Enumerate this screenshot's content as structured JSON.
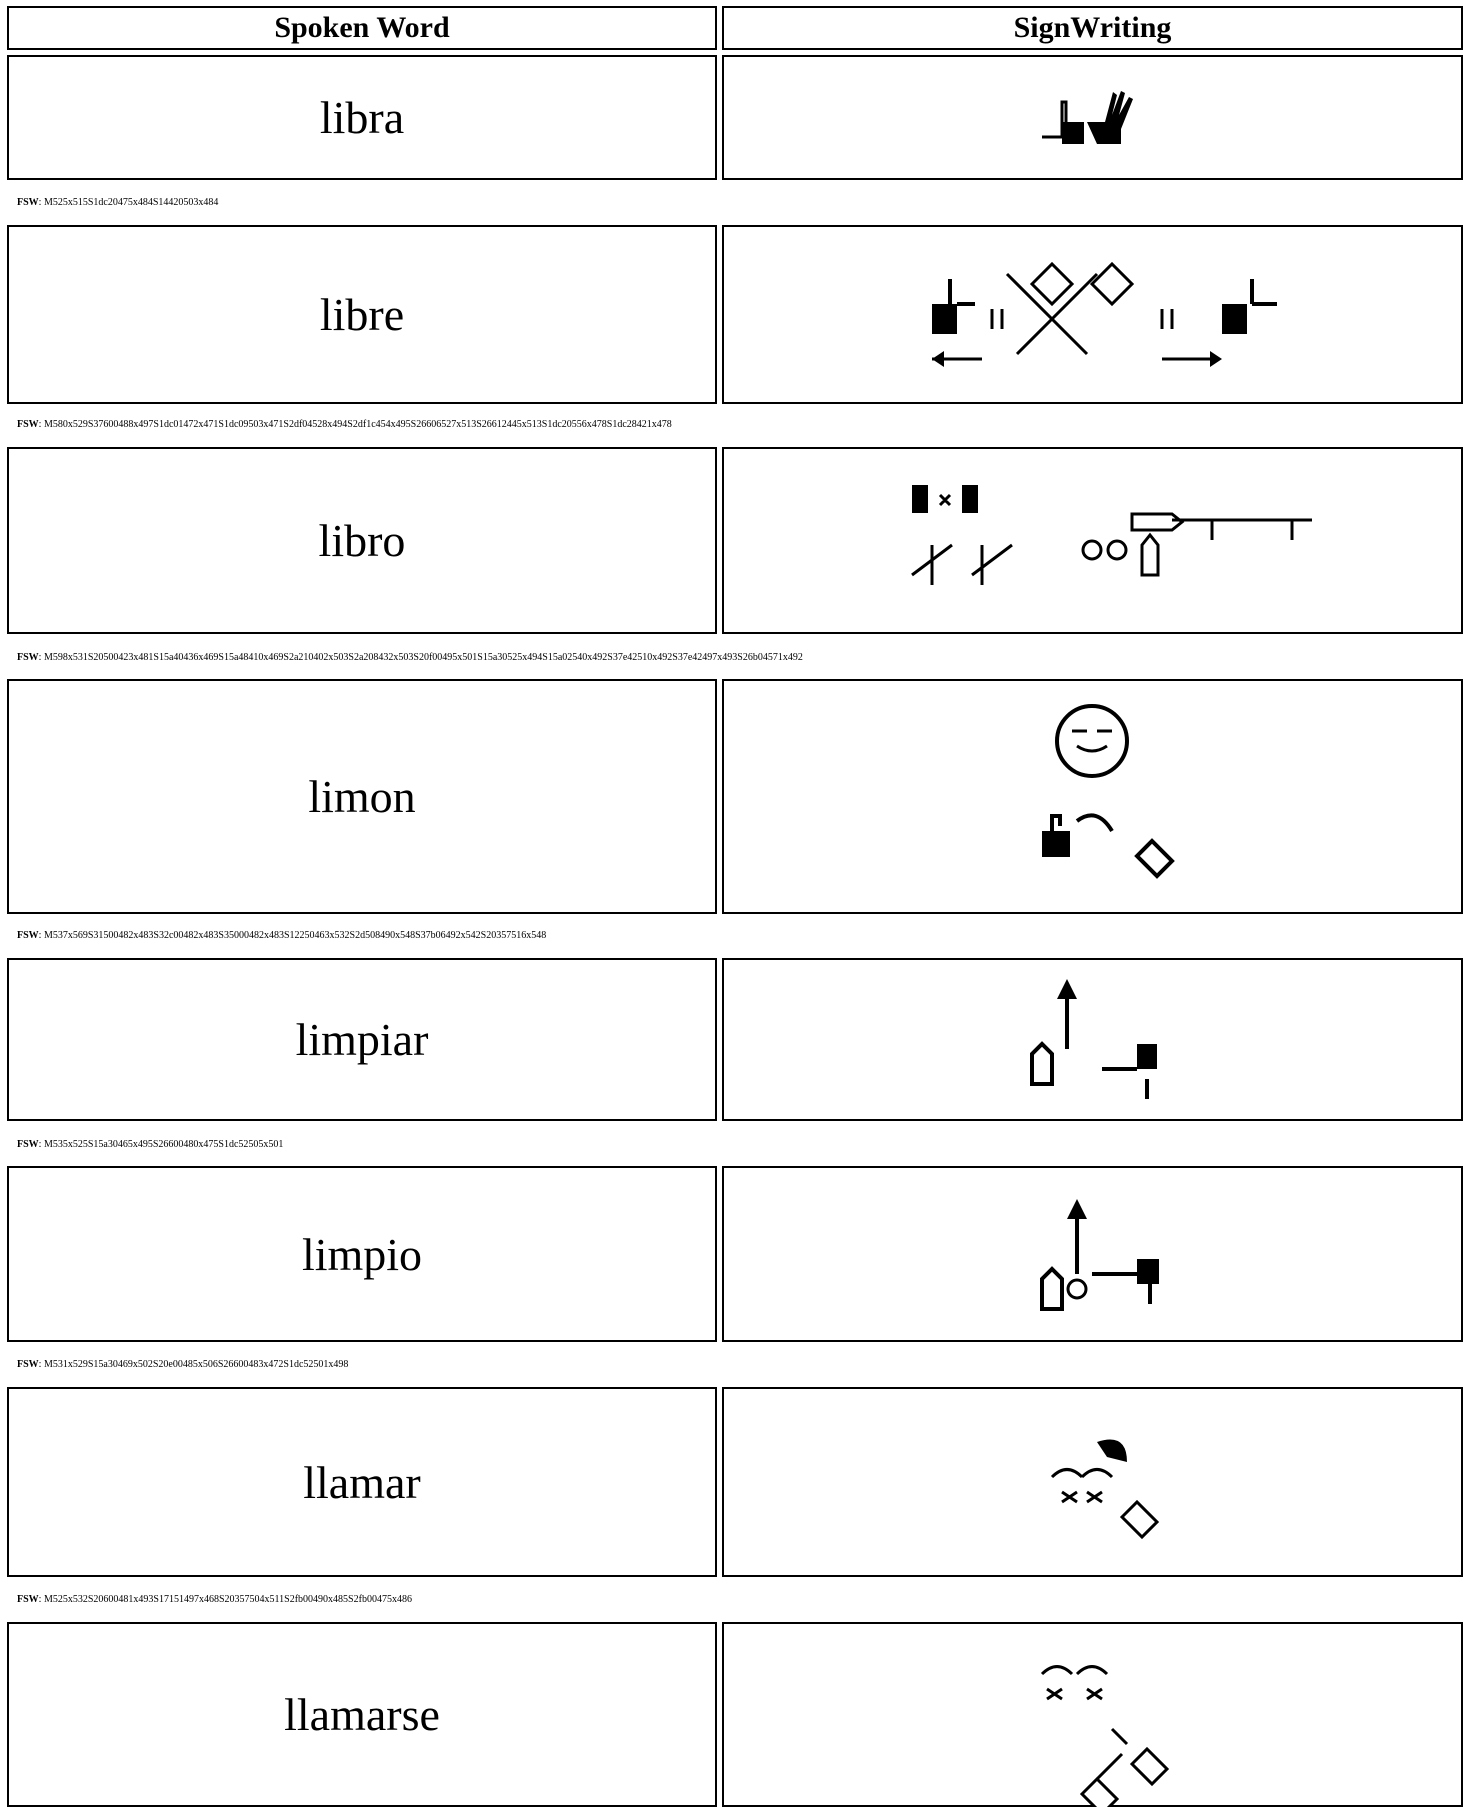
{
  "header": {
    "spoken_word": "Spoken Word",
    "signwriting": "SignWriting"
  },
  "fsw_label": "FSW",
  "fsw_separator": ":",
  "rows": [
    {
      "word": "libra",
      "fsw": "M525x515S1dc20475x484S14420503x484"
    },
    {
      "word": "libre",
      "fsw": "M580x529S37600488x497S1dc01472x471S1dc09503x471S2df04528x494S2df1c454x495S26606527x513S26612445x513S1dc20556x478S1dc28421x478"
    },
    {
      "word": "libro",
      "fsw": "M598x531S20500423x481S15a40436x469S15a48410x469S2a210402x503S2a208432x503S20f00495x501S15a30525x494S15a02540x492S37e42510x492S37e42497x493S26b04571x492"
    },
    {
      "word": "limon",
      "fsw": "M537x569S31500482x483S32c00482x483S35000482x483S12250463x532S2d508490x548S37b06492x542S20357516x548"
    },
    {
      "word": "limpiar",
      "fsw": "M535x525S15a30465x495S26600480x475S1dc52505x501"
    },
    {
      "word": "limpio",
      "fsw": "M531x529S15a30469x502S20e00485x506S26600483x472S1dc52501x498"
    },
    {
      "word": "llamar",
      "fsw": "M525x532S20600481x493S17151497x468S20357504x511S2fb00490x485S2fb00475x486"
    },
    {
      "word": "llamarse"
    }
  ]
}
